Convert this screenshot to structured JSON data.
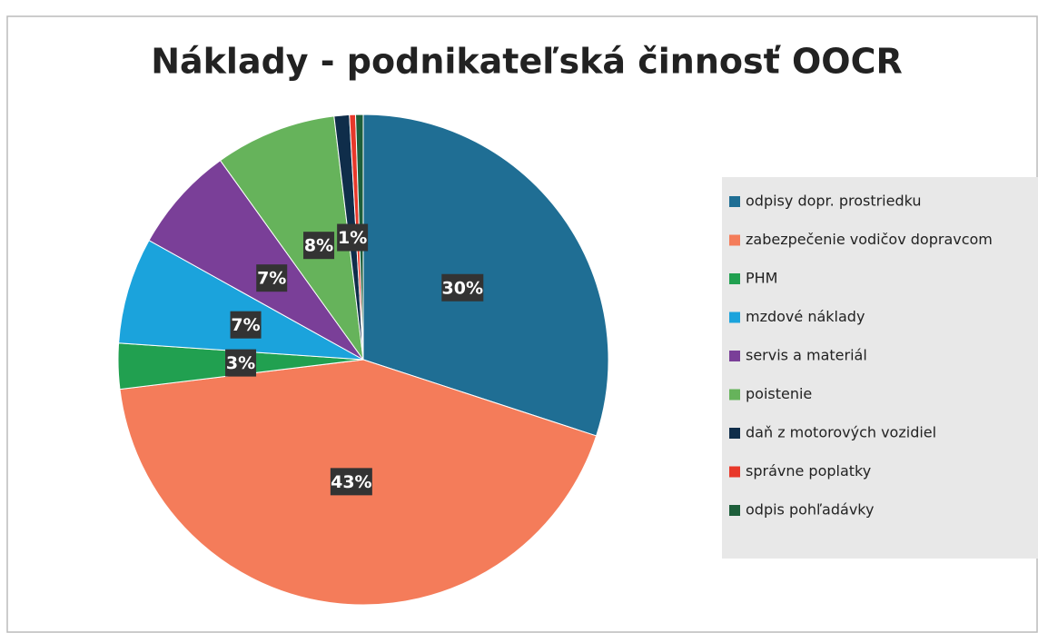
{
  "chart_data": {
    "type": "pie",
    "title": "Náklady - podnikateľská činnosť OOCR",
    "categories": [
      "odpisy dopr. prostriedku",
      "zabezpečenie vodičov dopravcom",
      "PHM",
      "mzdové náklady",
      "servis a materiál",
      "poistenie",
      "daň z motorových vozidiel",
      "správne poplatky",
      "odpis pohľadávky"
    ],
    "values": [
      30,
      43,
      3,
      7,
      7,
      8,
      1,
      0.4,
      0.5
    ],
    "value_labels": [
      "30%",
      "43%",
      "3%",
      "7%",
      "7%",
      "8%",
      "1%",
      null,
      null
    ],
    "colors": [
      "#1f6e94",
      "#f47c5a",
      "#21a050",
      "#1ba3dc",
      "#7a3f98",
      "#66b35b",
      "#0f2d4a",
      "#e8382a",
      "#1d5e3a"
    ],
    "legend": "right"
  }
}
